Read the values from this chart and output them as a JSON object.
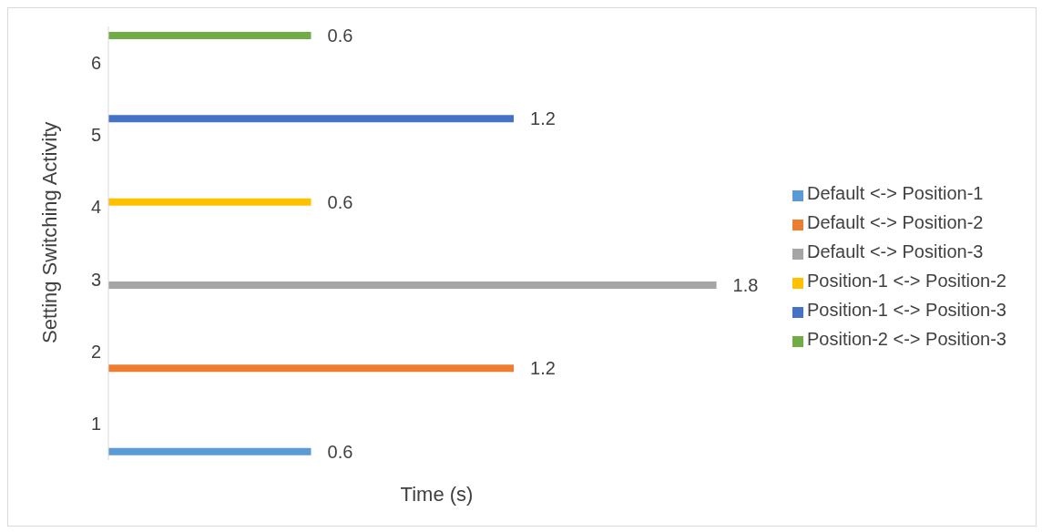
{
  "chart_data": {
    "type": "bar",
    "orientation": "horizontal",
    "xlabel": "Time (s)",
    "ylabel": "Setting Switching Activity",
    "categories": [
      "6",
      "5",
      "4",
      "3",
      "2",
      "1"
    ],
    "series": [
      {
        "name": "Position-2 <-> Position-3",
        "color": "#70ad47",
        "values": [
          0.6,
          null,
          null,
          null,
          null,
          null
        ]
      },
      {
        "name": "Position-1 <-> Position-3",
        "color": "#4472c4",
        "values": [
          null,
          1.2,
          null,
          null,
          null,
          null
        ]
      },
      {
        "name": "Position-1 <-> Position-2",
        "color": "#ffc000",
        "values": [
          null,
          null,
          0.6,
          null,
          null,
          null
        ]
      },
      {
        "name": "Default <-> Position-3",
        "color": "#a5a5a5",
        "values": [
          null,
          null,
          null,
          1.8,
          null,
          null
        ]
      },
      {
        "name": "Default <-> Position-2",
        "color": "#ed7d31",
        "values": [
          null,
          null,
          null,
          null,
          1.2,
          null
        ]
      },
      {
        "name": "Default <-> Position-1",
        "color": "#5b9bd5",
        "values": [
          null,
          null,
          null,
          null,
          null,
          0.6
        ]
      }
    ],
    "data_labels": true,
    "tick_labels": "y",
    "grid": false,
    "legend": "right"
  }
}
